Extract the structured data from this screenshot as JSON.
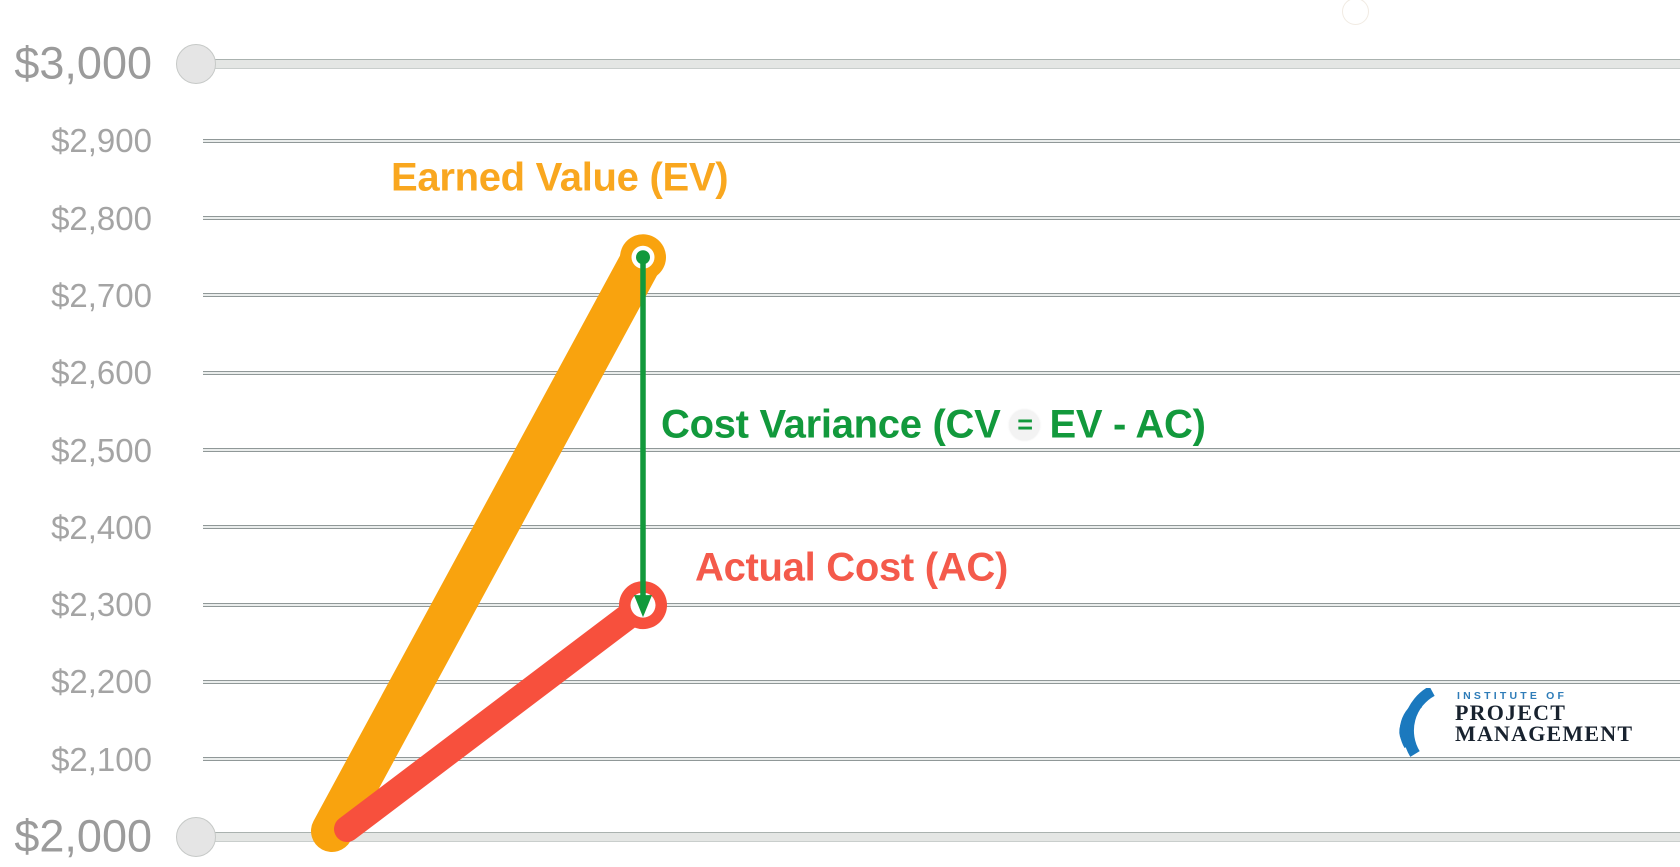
{
  "chart_data": {
    "type": "line",
    "grid": "horizontal",
    "y_axis": {
      "min": 2000,
      "max": 3000,
      "tick_interval": 100,
      "ticks": [
        {
          "label": "$3,000",
          "value": 3000,
          "major": true
        },
        {
          "label": "$2,900",
          "value": 2900,
          "major": false
        },
        {
          "label": "$2,800",
          "value": 2800,
          "major": false
        },
        {
          "label": "$2,700",
          "value": 2700,
          "major": false
        },
        {
          "label": "$2,600",
          "value": 2600,
          "major": false
        },
        {
          "label": "$2,500",
          "value": 2500,
          "major": false
        },
        {
          "label": "$2,400",
          "value": 2400,
          "major": false
        },
        {
          "label": "$2,300",
          "value": 2300,
          "major": false
        },
        {
          "label": "$2,200",
          "value": 2200,
          "major": false
        },
        {
          "label": "$2,100",
          "value": 2100,
          "major": false
        },
        {
          "label": "$2,000",
          "value": 2000,
          "major": true
        }
      ]
    },
    "series": [
      {
        "name": "Earned Value (EV)",
        "color": "#F9A30E",
        "label_color": "#F9A71F",
        "values": [
          2000,
          2750
        ]
      },
      {
        "name": "Actual Cost (AC)",
        "color": "#F7503D",
        "label_color": "#F45A4B",
        "values": [
          2000,
          2300
        ]
      }
    ],
    "annotation": {
      "label": "Cost Variance (CV = EV - AC)",
      "pre": "Cost Variance (CV",
      "eq": "=",
      "post": "EV - AC)",
      "color": "#12993C",
      "from_value": 2750,
      "to_value": 2300
    }
  },
  "logo": {
    "institute": "INSTITUTE OF",
    "project": "PROJECT",
    "management": "MANAGEMENT"
  },
  "colors": {
    "background": "#FFFFFF",
    "grid_thin": "#909898",
    "grid_thick": "#E4E6E4",
    "axis_dot": "#E5E5E5",
    "tick_label_minor": "#A4A4A4",
    "tick_label_major": "#9B9B9B",
    "arrow_green": "#12993C",
    "logo_blue": "#2E7CB8",
    "logo_navy": "#18222E"
  }
}
